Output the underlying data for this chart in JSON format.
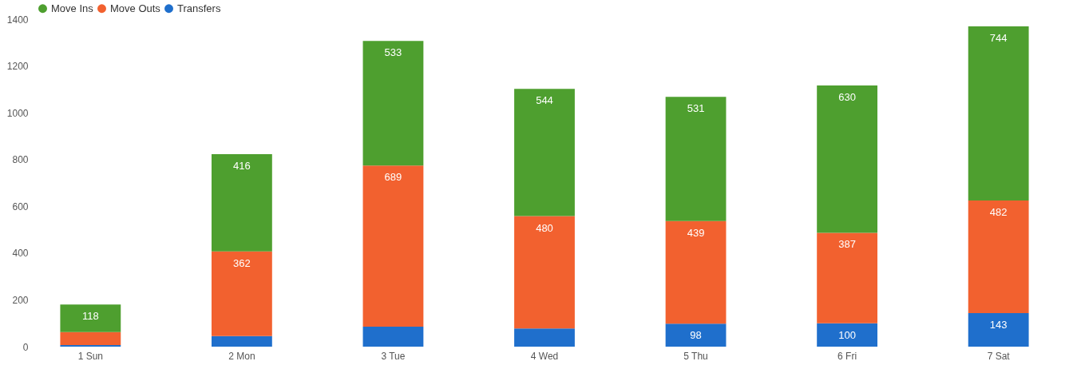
{
  "chart_data": {
    "type": "bar",
    "stacked": true,
    "categories": [
      "1 Sun",
      "2 Mon",
      "3 Tue",
      "4 Wed",
      "5 Thu",
      "6 Fri",
      "7 Sat"
    ],
    "series": [
      {
        "name": "Transfers",
        "color": "#1f6fcc",
        "values": [
          7,
          45,
          85,
          78,
          98,
          100,
          143
        ],
        "value_labels": [
          null,
          null,
          null,
          null,
          "98",
          "100",
          "143"
        ]
      },
      {
        "name": "Move Outs",
        "color": "#f2612f",
        "values": [
          55,
          362,
          689,
          480,
          439,
          387,
          482
        ],
        "value_labels": [
          null,
          "362",
          "689",
          "480",
          "439",
          "387",
          "482"
        ]
      },
      {
        "name": "Move Ins",
        "color": "#4e9f2f",
        "values": [
          118,
          416,
          533,
          544,
          531,
          630,
          744
        ],
        "value_labels": [
          "118",
          "416",
          "533",
          "544",
          "531",
          "630",
          "744"
        ]
      }
    ],
    "ylim": [
      0,
      1400
    ],
    "yticks": [
      0,
      200,
      400,
      600,
      800,
      1000,
      1200,
      1400
    ],
    "grid": false,
    "legend": "top left"
  }
}
